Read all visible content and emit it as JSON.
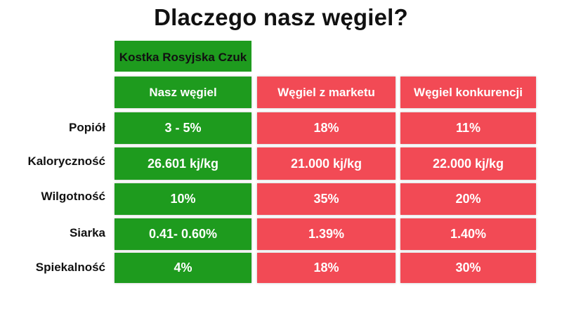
{
  "title": "Dlaczego nasz węgiel?",
  "product_label": "Kostka Rosyjska Czuk",
  "columns": [
    "Nasz węgiel",
    "Węgiel z marketu",
    "Węgiel konkurencji"
  ],
  "rows": [
    {
      "label": "Popiół",
      "values": [
        "3 - 5%",
        "18%",
        "11%"
      ]
    },
    {
      "label": "Kaloryczność",
      "values": [
        "26.601 kj/kg",
        "21.000 kj/kg",
        "22.000 kj/kg"
      ]
    },
    {
      "label": "Wilgotność",
      "values": [
        "10%",
        "35%",
        "20%"
      ]
    },
    {
      "label": "Siarka",
      "values": [
        "0.41- 0.60%",
        "1.39%",
        "1.40%"
      ]
    },
    {
      "label": "Spiekalność",
      "values": [
        "4%",
        "18%",
        "30%"
      ]
    }
  ],
  "colors": {
    "ours": "#1e9b1e",
    "others": "#f24a55"
  }
}
